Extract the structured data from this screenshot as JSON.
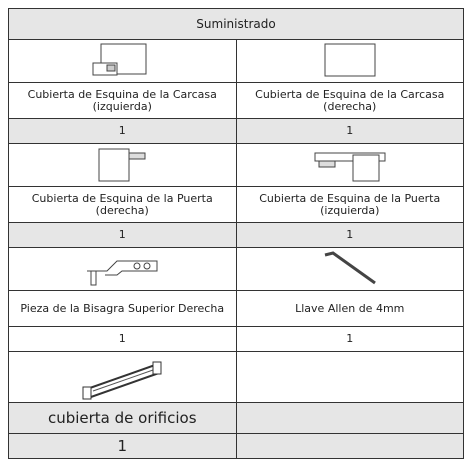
{
  "header": {
    "title": "Suministrado"
  },
  "items": [
    {
      "name": "Cubierta de Esquina de la Carcasa (izquierda)",
      "quantity": 1
    },
    {
      "name": "Cubierta de Esquina de la Carcasa (derecha)",
      "quantity": 1
    },
    {
      "name": "Cubierta de Esquina de la Puerta (derecha)",
      "quantity": 1
    },
    {
      "name": "Cubierta de Esquina de la Puerta (izquierda)",
      "quantity": 1
    },
    {
      "name": "Pieza de la Bisagra Superior Derecha",
      "quantity": 1
    },
    {
      "name": "Llave Allen de 4mm",
      "quantity": 1
    },
    {
      "name": "cubierta de orificios",
      "quantity": 1
    }
  ]
}
